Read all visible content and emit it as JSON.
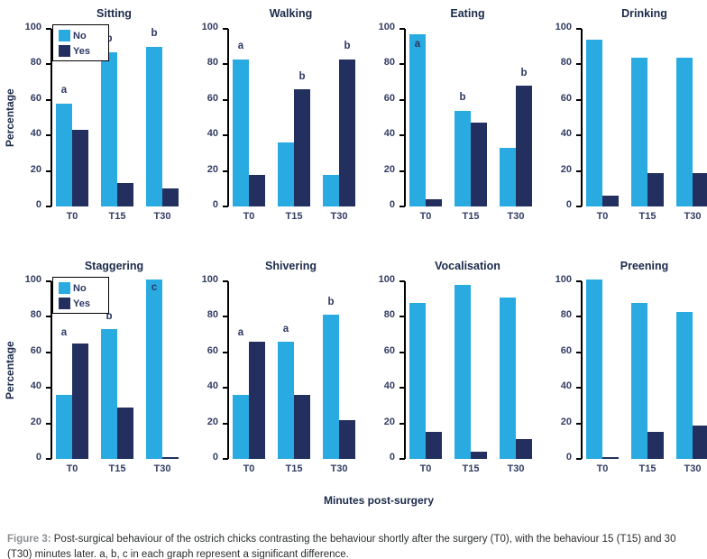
{
  "figure": {
    "xlabel": "Minutes post-surgery",
    "ylabel": "Percentage",
    "caption_prefix": "Figure 3:",
    "caption_body": "Post-surgical behaviour of the ostrich chicks contrasting the behaviour shortly after the surgery (T0), with the behaviour 15 (T15) and 30 (T30) minutes later. a, b, c in each graph represent a significant difference."
  },
  "legend": {
    "no": "No",
    "yes": "Yes"
  },
  "colors": {
    "no_bar": "#29abe2",
    "yes_bar": "#232f5e",
    "axis": "#000000",
    "chart_text": "#2c3763"
  },
  "chart_data": [
    {
      "type": "bar",
      "title": "Sitting",
      "ylim": [
        0,
        100
      ],
      "yticks": [
        100,
        80,
        60,
        40,
        20,
        0
      ],
      "categories": [
        "T0",
        "T15",
        "T30"
      ],
      "series": [
        {
          "name": "No",
          "values": [
            58,
            87,
            90
          ]
        },
        {
          "name": "Yes",
          "values": [
            43,
            13,
            10
          ]
        }
      ],
      "annotations": [
        {
          "cat": 0,
          "series": "no",
          "y": 62,
          "label": "a"
        },
        {
          "cat": 1,
          "series": "no",
          "y": 91,
          "label": "b"
        },
        {
          "cat": 2,
          "series": "no",
          "y": 94,
          "label": "b"
        }
      ],
      "legend": true,
      "ylabel": true
    },
    {
      "type": "bar",
      "title": "Walking",
      "ylim": [
        0,
        100
      ],
      "yticks": [
        100,
        80,
        60,
        40,
        20,
        0
      ],
      "categories": [
        "T0",
        "T15",
        "T30"
      ],
      "series": [
        {
          "name": "No",
          "values": [
            83,
            36,
            18
          ]
        },
        {
          "name": "Yes",
          "values": [
            18,
            66,
            83
          ]
        }
      ],
      "annotations": [
        {
          "cat": 0,
          "series": "no",
          "y": 87,
          "label": "a"
        },
        {
          "cat": 1,
          "series": "yes",
          "y": 70,
          "label": "b"
        },
        {
          "cat": 2,
          "series": "yes",
          "y": 87,
          "label": "b"
        }
      ],
      "legend": false,
      "ylabel": false
    },
    {
      "type": "bar",
      "title": "Eating",
      "ylim": [
        0,
        100
      ],
      "yticks": [
        100,
        80,
        60,
        40,
        20,
        0
      ],
      "categories": [
        "T0",
        "T15",
        "T30"
      ],
      "series": [
        {
          "name": "No",
          "values": [
            97,
            54,
            33
          ]
        },
        {
          "name": "Yes",
          "values": [
            4,
            47,
            68
          ]
        }
      ],
      "annotations": [
        {
          "cat": 0,
          "series": "no",
          "y": 88,
          "label": "a"
        },
        {
          "cat": 1,
          "series": "no",
          "y": 58,
          "label": "b"
        },
        {
          "cat": 2,
          "series": "yes",
          "y": 72,
          "label": "b"
        }
      ],
      "legend": false,
      "ylabel": false
    },
    {
      "type": "bar",
      "title": "Drinking",
      "ylim": [
        0,
        100
      ],
      "yticks": [
        100,
        80,
        60,
        40,
        20,
        0
      ],
      "categories": [
        "T0",
        "T15",
        "T30"
      ],
      "series": [
        {
          "name": "No",
          "values": [
            94,
            84,
            84
          ]
        },
        {
          "name": "Yes",
          "values": [
            6,
            19,
            19
          ]
        }
      ],
      "annotations": [],
      "legend": false,
      "ylabel": false
    },
    {
      "type": "bar",
      "title": "Staggering",
      "ylim": [
        0,
        100
      ],
      "yticks": [
        100,
        80,
        60,
        40,
        20,
        0
      ],
      "categories": [
        "T0",
        "T15",
        "T30"
      ],
      "series": [
        {
          "name": "No",
          "values": [
            36,
            73,
            101
          ]
        },
        {
          "name": "Yes",
          "values": [
            65,
            29,
            1
          ]
        }
      ],
      "annotations": [
        {
          "cat": 0,
          "series": "no",
          "y": 68,
          "label": "a"
        },
        {
          "cat": 1,
          "series": "no",
          "y": 77,
          "label": "b"
        },
        {
          "cat": 2,
          "series": "no",
          "y": 93,
          "label": "c"
        }
      ],
      "legend": true,
      "ylabel": true
    },
    {
      "type": "bar",
      "title": "Shivering",
      "ylim": [
        0,
        100
      ],
      "yticks": [
        100,
        80,
        60,
        40,
        20,
        0
      ],
      "categories": [
        "T0",
        "T15",
        "T30"
      ],
      "series": [
        {
          "name": "No",
          "values": [
            36,
            66,
            81
          ]
        },
        {
          "name": "Yes",
          "values": [
            66,
            36,
            22
          ]
        }
      ],
      "annotations": [
        {
          "cat": 0,
          "series": "no",
          "y": 68,
          "label": "a"
        },
        {
          "cat": 1,
          "series": "no",
          "y": 70,
          "label": "a"
        },
        {
          "cat": 2,
          "series": "no",
          "y": 85,
          "label": "b"
        }
      ],
      "legend": false,
      "ylabel": false
    },
    {
      "type": "bar",
      "title": "Vocalisation",
      "ylim": [
        0,
        100
      ],
      "yticks": [
        100,
        80,
        60,
        40,
        20,
        0
      ],
      "categories": [
        "T0",
        "T15",
        "T30"
      ],
      "series": [
        {
          "name": "No",
          "values": [
            88,
            98,
            91
          ]
        },
        {
          "name": "Yes",
          "values": [
            15,
            4,
            11
          ]
        }
      ],
      "annotations": [],
      "legend": false,
      "ylabel": false
    },
    {
      "type": "bar",
      "title": "Preening",
      "ylim": [
        0,
        100
      ],
      "yticks": [
        100,
        80,
        60,
        40,
        20,
        0
      ],
      "categories": [
        "T0",
        "T15",
        "T30"
      ],
      "series": [
        {
          "name": "No",
          "values": [
            101,
            88,
            83
          ]
        },
        {
          "name": "Yes",
          "values": [
            1,
            15,
            19
          ]
        }
      ],
      "annotations": [],
      "legend": false,
      "ylabel": false
    }
  ]
}
